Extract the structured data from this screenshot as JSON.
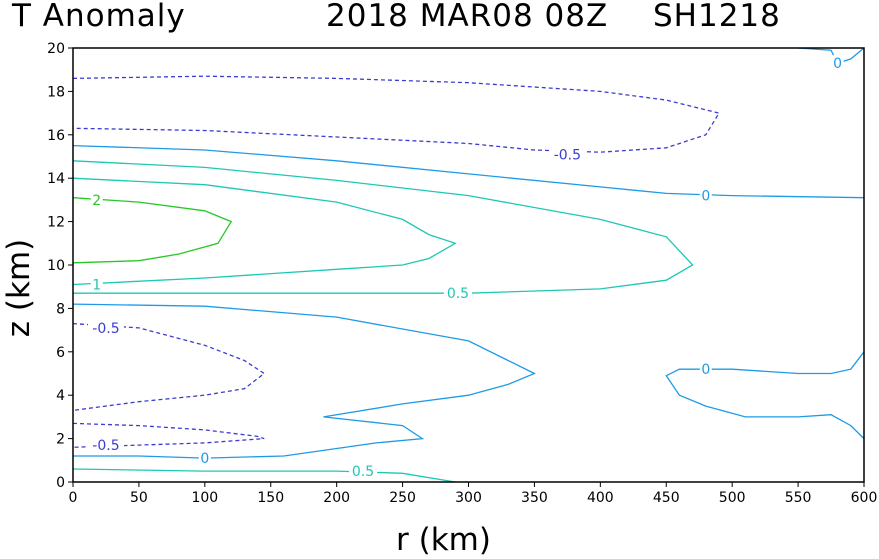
{
  "title": {
    "left": "T Anomaly",
    "date": "2018 MAR08 08Z",
    "storm": "SH1218"
  },
  "chart_data": {
    "type": "contour",
    "xlabel": "r (km)",
    "ylabel": "z (km)",
    "xlim": [
      0,
      600
    ],
    "ylim": [
      0,
      20
    ],
    "xticks": [
      0,
      50,
      100,
      150,
      200,
      250,
      300,
      350,
      400,
      450,
      500,
      550,
      600
    ],
    "yticks": [
      0,
      2,
      4,
      6,
      8,
      10,
      12,
      14,
      16,
      18,
      20
    ],
    "grid": false,
    "colors": {
      "-0.5": "#3c3cd2",
      "0": "#1e9be6",
      "0.5": "#1ec8b4",
      "1": "#1ec8b4",
      "2": "#28c828"
    },
    "contours": [
      {
        "level": -0.5,
        "label": "-0.5",
        "label_at": [
          375,
          15.1
        ],
        "points": [
          [
            0,
            18.6
          ],
          [
            100,
            18.7
          ],
          [
            200,
            18.6
          ],
          [
            300,
            18.4
          ],
          [
            400,
            18.0
          ],
          [
            450,
            17.6
          ],
          [
            490,
            17.0
          ],
          [
            480,
            16.0
          ],
          [
            450,
            15.4
          ],
          [
            400,
            15.2
          ],
          [
            350,
            15.3
          ],
          [
            300,
            15.6
          ],
          [
            200,
            15.9
          ],
          [
            100,
            16.2
          ],
          [
            0,
            16.3
          ]
        ]
      },
      {
        "level": 0,
        "label": "0",
        "label_at": [
          480,
          13.2
        ],
        "points": [
          [
            0,
            15.5
          ],
          [
            100,
            15.3
          ],
          [
            200,
            14.8
          ],
          [
            300,
            14.2
          ],
          [
            400,
            13.6
          ],
          [
            450,
            13.3
          ],
          [
            500,
            13.2
          ],
          [
            600,
            13.1
          ]
        ]
      },
      {
        "level": 0.5,
        "label": "",
        "points": [
          [
            0,
            14.8
          ],
          [
            100,
            14.5
          ],
          [
            200,
            13.9
          ],
          [
            300,
            13.2
          ],
          [
            400,
            12.1
          ],
          [
            450,
            11.3
          ],
          [
            470,
            10.0
          ],
          [
            450,
            9.3
          ],
          [
            400,
            8.9
          ],
          [
            300,
            8.7
          ],
          [
            200,
            8.7
          ],
          [
            100,
            8.7
          ],
          [
            0,
            8.7
          ]
        ]
      },
      {
        "level": 0.5,
        "label": "0.5",
        "label_at": [
          292,
          8.7
        ],
        "points": []
      },
      {
        "level": 1,
        "label": "1",
        "label_at": [
          18,
          9.1
        ],
        "points": [
          [
            0,
            14.0
          ],
          [
            100,
            13.7
          ],
          [
            200,
            12.9
          ],
          [
            250,
            12.1
          ],
          [
            270,
            11.4
          ],
          [
            290,
            11.0
          ],
          [
            270,
            10.3
          ],
          [
            250,
            10.0
          ],
          [
            200,
            9.8
          ],
          [
            100,
            9.4
          ],
          [
            0,
            9.1
          ]
        ]
      },
      {
        "level": 2,
        "label": "2",
        "label_at": [
          18,
          13.0
        ],
        "points": [
          [
            0,
            13.1
          ],
          [
            50,
            12.9
          ],
          [
            100,
            12.5
          ],
          [
            120,
            12.0
          ],
          [
            110,
            11.0
          ],
          [
            80,
            10.5
          ],
          [
            50,
            10.2
          ],
          [
            0,
            10.1
          ]
        ]
      },
      {
        "level": -0.5,
        "label": "-0.5",
        "label_at": [
          25,
          7.1
        ],
        "points": [
          [
            0,
            7.3
          ],
          [
            50,
            7.1
          ],
          [
            100,
            6.3
          ],
          [
            130,
            5.6
          ],
          [
            145,
            5.0
          ],
          [
            130,
            4.3
          ],
          [
            100,
            4.0
          ],
          [
            50,
            3.7
          ],
          [
            0,
            3.3
          ]
        ]
      },
      {
        "level": -0.5,
        "label": "-0.5",
        "label_at": [
          25,
          1.7
        ],
        "points": [
          [
            0,
            2.7
          ],
          [
            50,
            2.6
          ],
          [
            100,
            2.4
          ],
          [
            140,
            2.1
          ],
          [
            145,
            2.0
          ],
          [
            100,
            1.8
          ],
          [
            50,
            1.7
          ],
          [
            0,
            1.6
          ]
        ]
      },
      {
        "level": 0,
        "label": "",
        "points": [
          [
            0,
            8.2
          ],
          [
            100,
            8.1
          ],
          [
            200,
            7.6
          ],
          [
            300,
            6.5
          ],
          [
            330,
            5.6
          ],
          [
            350,
            5.0
          ],
          [
            330,
            4.5
          ],
          [
            300,
            4.0
          ],
          [
            250,
            3.6
          ],
          [
            190,
            3.0
          ],
          [
            250,
            2.6
          ],
          [
            265,
            2.0
          ],
          [
            230,
            1.8
          ],
          [
            160,
            1.2
          ],
          [
            100,
            1.1
          ],
          [
            50,
            1.2
          ],
          [
            0,
            1.2
          ]
        ]
      },
      {
        "level": 0,
        "label": "0",
        "label_at": [
          100,
          1.1
        ],
        "points": []
      },
      {
        "level": 0.5,
        "label": "0.5",
        "label_at": [
          220,
          0.5
        ],
        "points": [
          [
            0,
            0.6
          ],
          [
            100,
            0.5
          ],
          [
            200,
            0.5
          ],
          [
            250,
            0.4
          ],
          [
            290,
            0.0
          ]
        ]
      },
      {
        "level": 0,
        "label": "0",
        "label_at": [
          480,
          5.2
        ],
        "points": [
          [
            600,
            6.0
          ],
          [
            590,
            5.2
          ],
          [
            575,
            5.0
          ],
          [
            550,
            5.0
          ],
          [
            500,
            5.2
          ],
          [
            460,
            5.2
          ],
          [
            450,
            4.9
          ],
          [
            460,
            4.0
          ],
          [
            480,
            3.5
          ],
          [
            510,
            3.0
          ],
          [
            550,
            3.0
          ],
          [
            575,
            3.1
          ],
          [
            590,
            2.6
          ],
          [
            600,
            2.0
          ]
        ]
      },
      {
        "level": 0,
        "label": "0",
        "label_at": [
          580,
          19.3
        ],
        "points": [
          [
            550,
            20.0
          ],
          [
            575,
            19.9
          ],
          [
            580,
            19.3
          ],
          [
            590,
            19.5
          ],
          [
            600,
            20.0
          ]
        ]
      }
    ]
  }
}
